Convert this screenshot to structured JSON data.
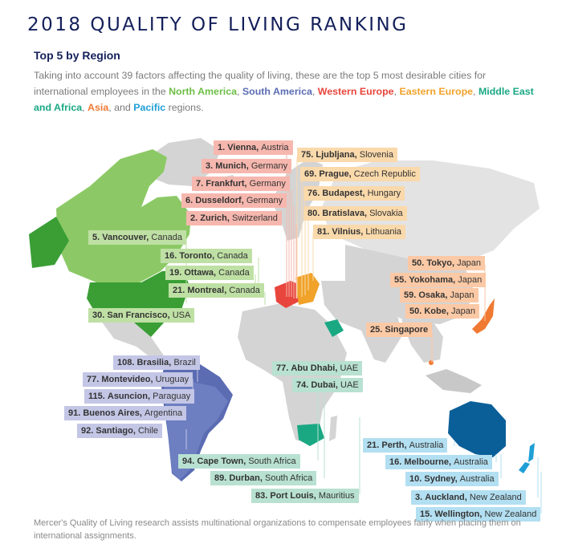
{
  "header": {
    "title": "2018 QUALITY OF LIVING RANKING",
    "subtitle": "Top 5 by Region"
  },
  "intro": {
    "text_1": "Taking into account 39 factors affecting the quality of living, these are the top 5 most desirable cities for international employees in the ",
    "sep_comma": ", ",
    "sep_and": ", and ",
    "tail": " regions."
  },
  "regions": [
    {
      "id": "north_america",
      "name": "North America",
      "color": "#6dbe45",
      "label_bg": "#bfe0a4"
    },
    {
      "id": "south_america",
      "name": "South America",
      "color": "#5b6cb3",
      "label_bg": "#c4c6e6"
    },
    {
      "id": "western_europe",
      "name": "Western Europe",
      "color": "#e8453c",
      "label_bg": "#f6b7ae"
    },
    {
      "id": "eastern_europe",
      "name": "Eastern Europe",
      "color": "#f0a229",
      "label_bg": "#fad9ab"
    },
    {
      "id": "middle_east_africa",
      "name": "Middle East and Africa",
      "color": "#1aa883",
      "label_bg": "#b8e1d2"
    },
    {
      "id": "asia",
      "name": "Asia",
      "color": "#f07a32",
      "label_bg": "#fbc9a5"
    },
    {
      "id": "pacific",
      "name": "Pacific",
      "color": "#1e9fd6",
      "label_bg": "#b2dff1"
    }
  ],
  "cities": {
    "western_europe": [
      {
        "rank": "1.",
        "city": "Vienna",
        "country": "Austria"
      },
      {
        "rank": "3.",
        "city": "Munich",
        "country": "Germany"
      },
      {
        "rank": "7.",
        "city": "Frankfurt",
        "country": "Germany"
      },
      {
        "rank": "6.",
        "city": "Dusseldorf",
        "country": "Germany"
      },
      {
        "rank": "2.",
        "city": "Zurich",
        "country": "Switzerland"
      }
    ],
    "eastern_europe": [
      {
        "rank": "75.",
        "city": "Ljubljana",
        "country": "Slovenia"
      },
      {
        "rank": "69.",
        "city": "Prague",
        "country": "Czech Republic"
      },
      {
        "rank": "76.",
        "city": "Budapest",
        "country": "Hungary"
      },
      {
        "rank": "80.",
        "city": "Bratislava",
        "country": "Slovakia"
      },
      {
        "rank": "81.",
        "city": "Vilnius",
        "country": "Lithuania"
      }
    ],
    "north_america": [
      {
        "rank": "5.",
        "city": "Vancouver",
        "country": "Canada"
      },
      {
        "rank": "16.",
        "city": "Toronto",
        "country": "Canada"
      },
      {
        "rank": "19.",
        "city": "Ottawa",
        "country": "Canada"
      },
      {
        "rank": "21.",
        "city": "Montreal",
        "country": "Canada"
      },
      {
        "rank": "30.",
        "city": "San Francisco",
        "country": "USA"
      }
    ],
    "asia": [
      {
        "rank": "50.",
        "city": "Tokyo",
        "country": "Japan"
      },
      {
        "rank": "55.",
        "city": "Yokohama",
        "country": "Japan"
      },
      {
        "rank": "59.",
        "city": "Osaka",
        "country": "Japan"
      },
      {
        "rank": "50.",
        "city": "Kobe",
        "country": "Japan"
      },
      {
        "rank": "25.",
        "city": "Singapore",
        "country": ""
      }
    ],
    "south_america": [
      {
        "rank": "108.",
        "city": "Brasilia",
        "country": "Brazil"
      },
      {
        "rank": "77.",
        "city": "Montevideo",
        "country": "Uruguay"
      },
      {
        "rank": "115.",
        "city": "Asuncion",
        "country": "Paraguay"
      },
      {
        "rank": "91.",
        "city": "Buenos Aires",
        "country": "Argentina"
      },
      {
        "rank": "92.",
        "city": "Santiago",
        "country": "Chile"
      }
    ],
    "middle_east_africa": [
      {
        "rank": "77.",
        "city": "Abu Dhabi",
        "country": "UAE"
      },
      {
        "rank": "74.",
        "city": "Dubai",
        "country": "UAE"
      },
      {
        "rank": "94.",
        "city": "Cape Town",
        "country": "South Africa"
      },
      {
        "rank": "89.",
        "city": "Durban",
        "country": "South Africa"
      },
      {
        "rank": "83.",
        "city": "Port Louis",
        "country": "Mauritius"
      }
    ],
    "pacific": [
      {
        "rank": "21.",
        "city": "Perth",
        "country": "Australia"
      },
      {
        "rank": "16.",
        "city": "Melbourne",
        "country": "Australia"
      },
      {
        "rank": "10.",
        "city": "Sydney",
        "country": "Australia"
      },
      {
        "rank": "3.",
        "city": "Auckland",
        "country": "New Zealand"
      },
      {
        "rank": "15.",
        "city": "Wellington",
        "country": "New Zealand"
      }
    ]
  },
  "footer": {
    "text": "Mercer's Quality of Living research assists multinational organizations to compensate employees fairly when placing them on international assignments."
  }
}
